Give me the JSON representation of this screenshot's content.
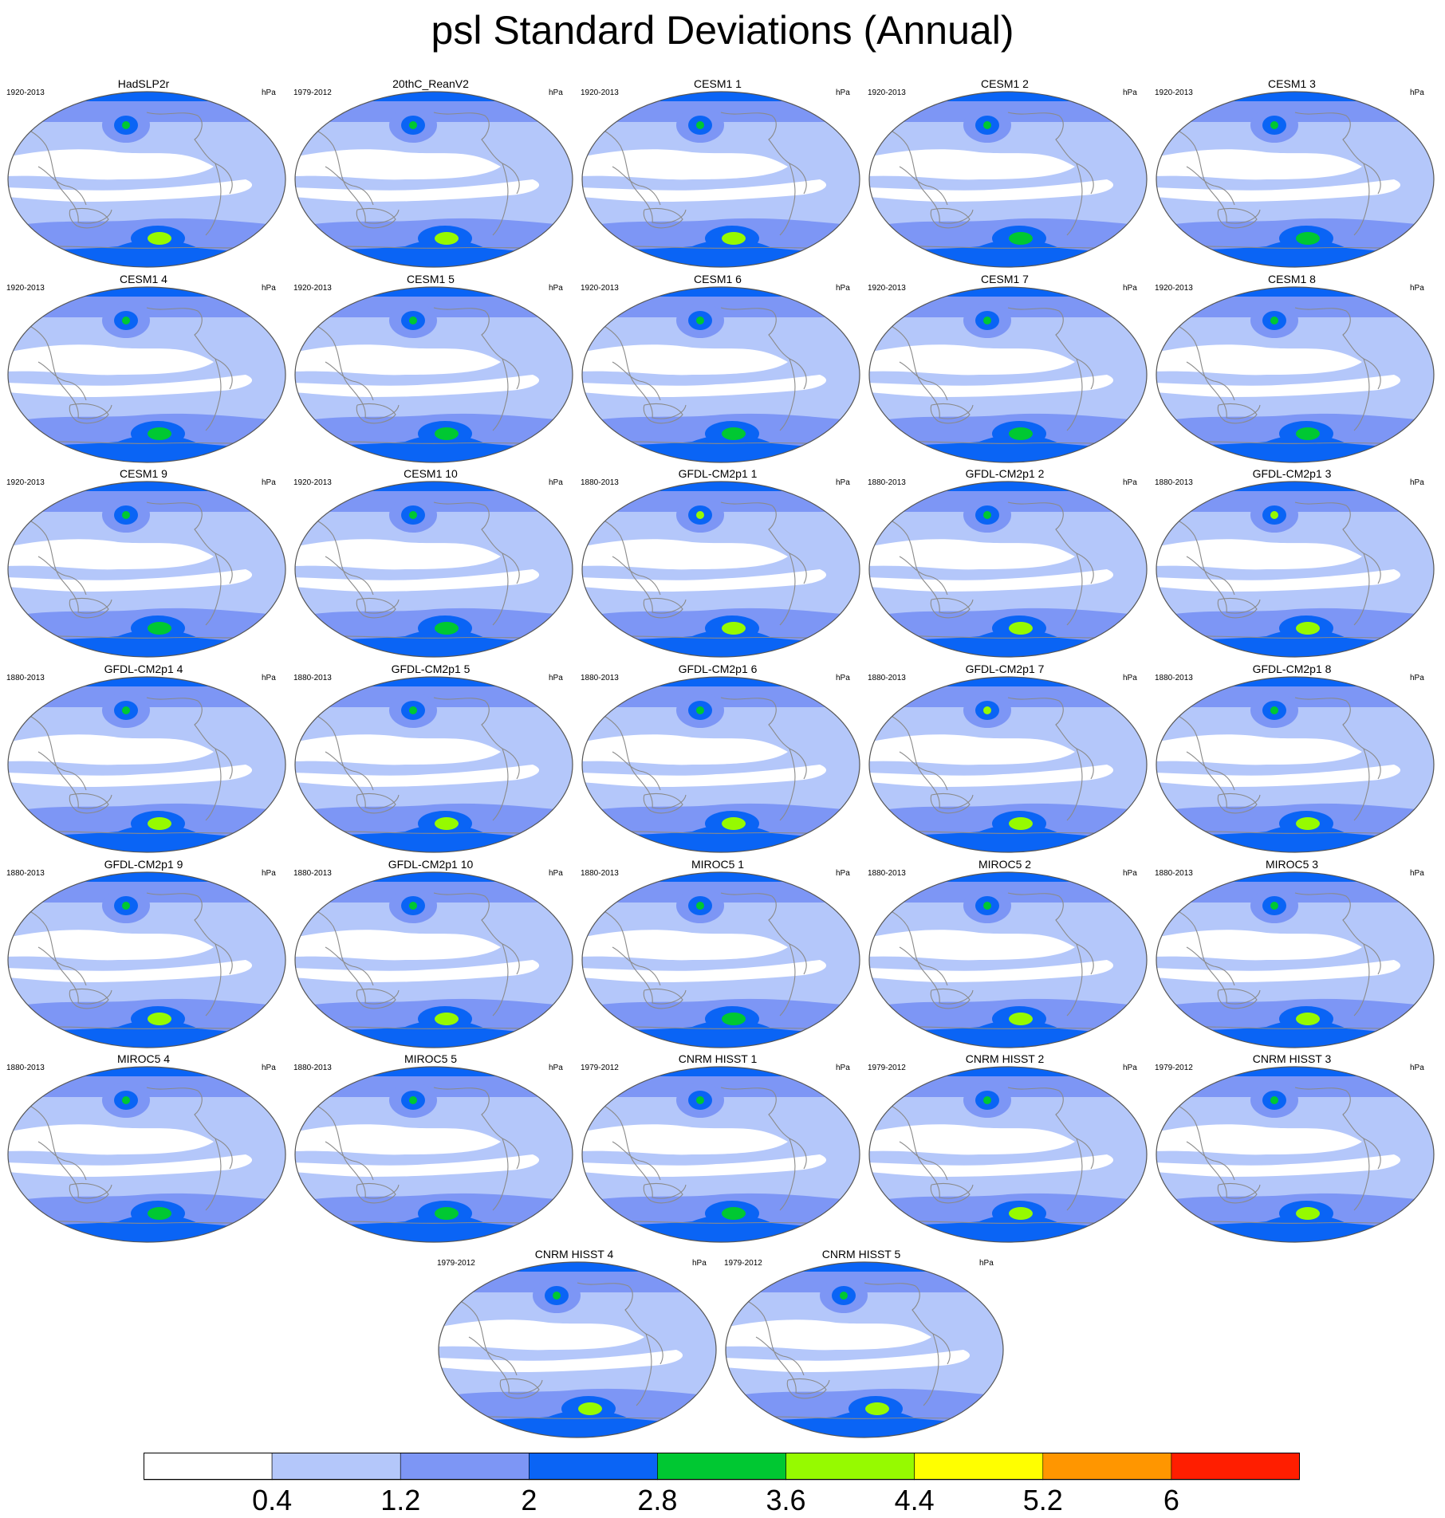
{
  "title": "psl Standard Deviations (Annual)",
  "unit": "hPa",
  "colors": {
    "levels": [
      "#ffffff",
      "#b4c7fa",
      "#7d96f5",
      "#0a64f5",
      "#00c832",
      "#96fa00",
      "#ffff00",
      "#ff9600",
      "#ff1e00"
    ],
    "map_outline": "#555555",
    "coast": "#8a8a8a"
  },
  "chart_data": {
    "type": "heatmap",
    "projection": "global map (Robinson-like), Pacific-centered",
    "colorbar": {
      "levels": [
        0.4,
        1.2,
        2,
        2.8,
        3.6,
        4.4,
        5.2,
        6
      ],
      "labels": [
        "0.4",
        "1.2",
        "2",
        "2.8",
        "3.6",
        "4.4",
        "5.2",
        "6"
      ]
    },
    "panels": [
      {
        "name": "HadSLP2r",
        "period": "1920-2013",
        "unit": "hPa",
        "south_max": 3.6,
        "npac_max": 2.8
      },
      {
        "name": "20thC_ReanV2",
        "period": "1979-2012",
        "unit": "hPa",
        "south_max": 3.6,
        "npac_max": 2.8
      },
      {
        "name": "CESM1 1",
        "period": "1920-2013",
        "unit": "hPa",
        "south_max": 3.6,
        "npac_max": 2.8
      },
      {
        "name": "CESM1 2",
        "period": "1920-2013",
        "unit": "hPa",
        "south_max": 2.8,
        "npac_max": 2.8
      },
      {
        "name": "CESM1 3",
        "period": "1920-2013",
        "unit": "hPa",
        "south_max": 2.8,
        "npac_max": 2.8
      },
      {
        "name": "CESM1 4",
        "period": "1920-2013",
        "unit": "hPa",
        "south_max": 2.8,
        "npac_max": 2.8
      },
      {
        "name": "CESM1 5",
        "period": "1920-2013",
        "unit": "hPa",
        "south_max": 2.8,
        "npac_max": 2.8
      },
      {
        "name": "CESM1 6",
        "period": "1920-2013",
        "unit": "hPa",
        "south_max": 2.8,
        "npac_max": 2.8
      },
      {
        "name": "CESM1 7",
        "period": "1920-2013",
        "unit": "hPa",
        "south_max": 2.8,
        "npac_max": 2.8
      },
      {
        "name": "CESM1 8",
        "period": "1920-2013",
        "unit": "hPa",
        "south_max": 2.8,
        "npac_max": 2.8
      },
      {
        "name": "CESM1 9",
        "period": "1920-2013",
        "unit": "hPa",
        "south_max": 2.8,
        "npac_max": 2.8
      },
      {
        "name": "CESM1 10",
        "period": "1920-2013",
        "unit": "hPa",
        "south_max": 2.8,
        "npac_max": 2.8
      },
      {
        "name": "GFDL-CM2p1 1",
        "period": "1880-2013",
        "unit": "hPa",
        "south_max": 3.6,
        "npac_max": 3.6
      },
      {
        "name": "GFDL-CM2p1 2",
        "period": "1880-2013",
        "unit": "hPa",
        "south_max": 3.6,
        "npac_max": 2.8
      },
      {
        "name": "GFDL-CM2p1 3",
        "period": "1880-2013",
        "unit": "hPa",
        "south_max": 3.6,
        "npac_max": 3.6
      },
      {
        "name": "GFDL-CM2p1 4",
        "period": "1880-2013",
        "unit": "hPa",
        "south_max": 3.6,
        "npac_max": 2.8
      },
      {
        "name": "GFDL-CM2p1 5",
        "period": "1880-2013",
        "unit": "hPa",
        "south_max": 3.6,
        "npac_max": 2.8
      },
      {
        "name": "GFDL-CM2p1 6",
        "period": "1880-2013",
        "unit": "hPa",
        "south_max": 3.6,
        "npac_max": 2.8
      },
      {
        "name": "GFDL-CM2p1 7",
        "period": "1880-2013",
        "unit": "hPa",
        "south_max": 3.6,
        "npac_max": 3.6
      },
      {
        "name": "GFDL-CM2p1 8",
        "period": "1880-2013",
        "unit": "hPa",
        "south_max": 3.6,
        "npac_max": 2.8
      },
      {
        "name": "GFDL-CM2p1 9",
        "period": "1880-2013",
        "unit": "hPa",
        "south_max": 3.6,
        "npac_max": 2.8
      },
      {
        "name": "GFDL-CM2p1 10",
        "period": "1880-2013",
        "unit": "hPa",
        "south_max": 3.6,
        "npac_max": 2.8
      },
      {
        "name": "MIROC5 1",
        "period": "1880-2013",
        "unit": "hPa",
        "south_max": 2.8,
        "npac_max": 2.8
      },
      {
        "name": "MIROC5 2",
        "period": "1880-2013",
        "unit": "hPa",
        "south_max": 3.6,
        "npac_max": 2.8
      },
      {
        "name": "MIROC5 3",
        "period": "1880-2013",
        "unit": "hPa",
        "south_max": 3.6,
        "npac_max": 2.8
      },
      {
        "name": "MIROC5 4",
        "period": "1880-2013",
        "unit": "hPa",
        "south_max": 2.8,
        "npac_max": 2.8
      },
      {
        "name": "MIROC5 5",
        "period": "1880-2013",
        "unit": "hPa",
        "south_max": 2.8,
        "npac_max": 2.8
      },
      {
        "name": "CNRM HISST 1",
        "period": "1979-2012",
        "unit": "hPa",
        "south_max": 2.8,
        "npac_max": 2.8
      },
      {
        "name": "CNRM HISST 2",
        "period": "1979-2012",
        "unit": "hPa",
        "south_max": 3.6,
        "npac_max": 2.8
      },
      {
        "name": "CNRM HISST 3",
        "period": "1979-2012",
        "unit": "hPa",
        "south_max": 3.6,
        "npac_max": 2.8
      },
      {
        "name": "CNRM HISST 4",
        "period": "1979-2012",
        "unit": "hPa",
        "south_max": 3.6,
        "npac_max": 2.8
      },
      {
        "name": "CNRM HISST 5",
        "period": "1979-2012",
        "unit": "hPa",
        "south_max": 3.6,
        "npac_max": 2.8
      }
    ]
  }
}
